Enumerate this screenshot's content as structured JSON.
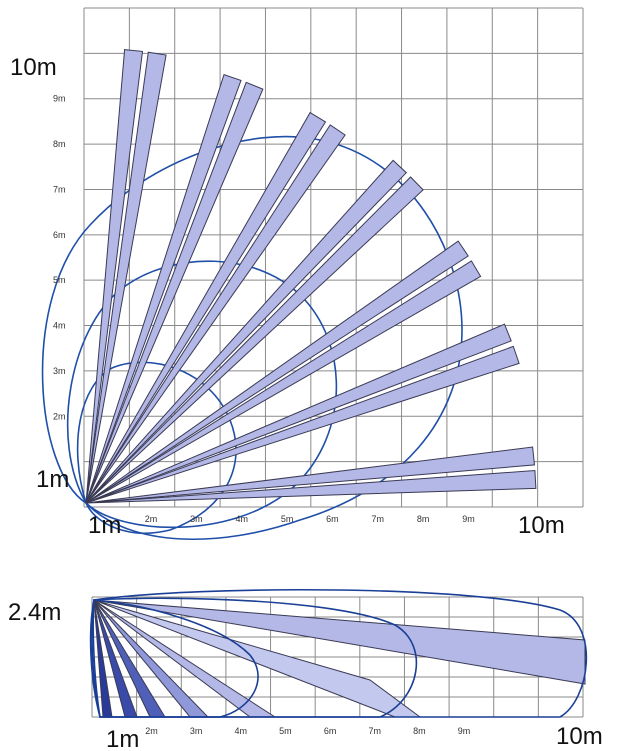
{
  "colors": {
    "grid": "#8a8a8a",
    "beam_fill": "#b3b8e6",
    "beam_stroke": "#3a3a55",
    "zone_stroke": "#1f4fa8",
    "side_zone_stroke": "#1a3f96"
  },
  "top_view": {
    "left_corner_label": "1m",
    "bottom_corner_label": "1m",
    "top_big_label": "10m",
    "right_big_label": "10m",
    "y_axis_labels": [
      "2m",
      "3m",
      "4m",
      "5m",
      "6m",
      "7m",
      "8m",
      "9m"
    ],
    "x_axis_labels": [
      "2m",
      "3m",
      "4m",
      "5m",
      "6m",
      "7m",
      "8m",
      "9m"
    ],
    "beam_angles_deg": [
      84,
      81,
      71,
      68,
      59,
      56,
      47,
      44,
      34,
      31,
      22,
      19,
      6,
      3
    ],
    "detection_zones": [
      {
        "name": "long-range-zone"
      },
      {
        "name": "mid-range-zone"
      },
      {
        "name": "short-range-zone"
      }
    ]
  },
  "side_view": {
    "height_label": "2.4m",
    "start_label": "1m",
    "end_label": "10m",
    "x_axis_labels": [
      "2m",
      "3m",
      "4m",
      "5m",
      "6m",
      "7m",
      "8m",
      "9m"
    ]
  }
}
